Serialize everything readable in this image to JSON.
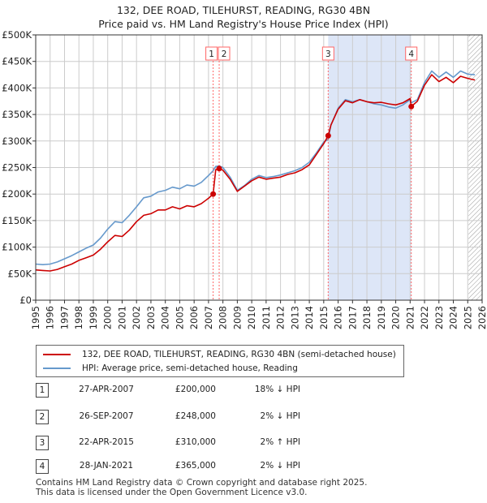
{
  "chart_data": {
    "type": "line",
    "title": "132, DEE ROAD, TILEHURST, READING, RG30 4BN",
    "subtitle": "Price paid vs. HM Land Registry's House Price Index (HPI)",
    "xlim": [
      1995,
      2026
    ],
    "ylim": [
      0,
      500000
    ],
    "x_ticks": [
      "1995",
      "1996",
      "1997",
      "1998",
      "1999",
      "2000",
      "2001",
      "2002",
      "2003",
      "2004",
      "2005",
      "2006",
      "2007",
      "2008",
      "2009",
      "2010",
      "2011",
      "2012",
      "2013",
      "2014",
      "2015",
      "2016",
      "2017",
      "2018",
      "2019",
      "2020",
      "2021",
      "2022",
      "2023",
      "2024",
      "2025",
      "2026"
    ],
    "y_ticks": [
      {
        "value": 0,
        "label": "£0"
      },
      {
        "value": 50000,
        "label": "£50K"
      },
      {
        "value": 100000,
        "label": "£100K"
      },
      {
        "value": 150000,
        "label": "£150K"
      },
      {
        "value": 200000,
        "label": "£200K"
      },
      {
        "value": 250000,
        "label": "£250K"
      },
      {
        "value": 300000,
        "label": "£300K"
      },
      {
        "value": 350000,
        "label": "£350K"
      },
      {
        "value": 400000,
        "label": "£400K"
      },
      {
        "value": 450000,
        "label": "£450K"
      },
      {
        "value": 500000,
        "label": "£500K"
      }
    ],
    "highlight_region": [
      2015.31,
      2021.08
    ],
    "series": [
      {
        "name": "132, DEE ROAD, TILEHURST, READING, RG30 4BN (semi-detached house)",
        "color": "#cc0000",
        "x": [
          1995.0,
          1995.5,
          1996.0,
          1996.5,
          1997.0,
          1997.5,
          1998.0,
          1998.5,
          1999.0,
          1999.5,
          2000.0,
          2000.5,
          2001.0,
          2001.5,
          2002.0,
          2002.5,
          2003.0,
          2003.5,
          2004.0,
          2004.5,
          2005.0,
          2005.5,
          2006.0,
          2006.5,
          2007.0,
          2007.32,
          2007.5,
          2007.74,
          2008.0,
          2008.5,
          2009.0,
          2009.5,
          2010.0,
          2010.5,
          2011.0,
          2011.5,
          2012.0,
          2012.5,
          2013.0,
          2013.5,
          2014.0,
          2014.5,
          2015.0,
          2015.31,
          2015.5,
          2016.0,
          2016.5,
          2017.0,
          2017.5,
          2018.0,
          2018.5,
          2019.0,
          2019.5,
          2020.0,
          2020.5,
          2021.0,
          2021.08,
          2021.5,
          2022.0,
          2022.5,
          2023.0,
          2023.5,
          2024.0,
          2024.5,
          2025.0,
          2025.5
        ],
        "values": [
          57000,
          56000,
          55000,
          58000,
          63000,
          68000,
          75000,
          80000,
          85000,
          96000,
          110000,
          122000,
          120000,
          132000,
          148000,
          160000,
          163000,
          170000,
          170000,
          176000,
          172000,
          178000,
          176000,
          182000,
          192000,
          200000,
          246000,
          248000,
          245000,
          228000,
          205000,
          215000,
          225000,
          232000,
          228000,
          230000,
          232000,
          237000,
          240000,
          246000,
          255000,
          275000,
          295000,
          310000,
          330000,
          360000,
          376000,
          372000,
          378000,
          374000,
          372000,
          373000,
          370000,
          368000,
          372000,
          380000,
          365000,
          375000,
          405000,
          425000,
          412000,
          420000,
          410000,
          422000,
          418000,
          415000
        ]
      },
      {
        "name": "HPI: Average price, semi-detached house, Reading",
        "color": "#6699cc",
        "x": [
          1995.0,
          1995.5,
          1996.0,
          1996.5,
          1997.0,
          1997.5,
          1998.0,
          1998.5,
          1999.0,
          1999.5,
          2000.0,
          2000.5,
          2001.0,
          2001.5,
          2002.0,
          2002.5,
          2003.0,
          2003.5,
          2004.0,
          2004.5,
          2005.0,
          2005.5,
          2006.0,
          2006.5,
          2007.0,
          2007.32,
          2007.5,
          2007.74,
          2008.0,
          2008.5,
          2009.0,
          2009.5,
          2010.0,
          2010.5,
          2011.0,
          2011.5,
          2012.0,
          2012.5,
          2013.0,
          2013.5,
          2014.0,
          2014.5,
          2015.0,
          2015.31,
          2015.5,
          2016.0,
          2016.5,
          2017.0,
          2017.5,
          2018.0,
          2018.5,
          2019.0,
          2019.5,
          2020.0,
          2020.5,
          2021.0,
          2021.08,
          2021.5,
          2022.0,
          2022.5,
          2023.0,
          2023.5,
          2024.0,
          2024.5,
          2025.0,
          2025.5
        ],
        "values": [
          68000,
          67000,
          68000,
          72000,
          78000,
          84000,
          91000,
          98000,
          104000,
          117000,
          134000,
          148000,
          146000,
          160000,
          176000,
          193000,
          196000,
          204000,
          207000,
          213000,
          210000,
          217000,
          215000,
          222000,
          235000,
          244000,
          252000,
          253000,
          250000,
          232000,
          207000,
          216000,
          228000,
          235000,
          231000,
          233000,
          236000,
          240000,
          244000,
          250000,
          260000,
          278000,
          298000,
          303000,
          330000,
          362000,
          378000,
          374000,
          378000,
          374000,
          370000,
          368000,
          364000,
          362000,
          368000,
          378000,
          372000,
          378000,
          410000,
          432000,
          420000,
          430000,
          420000,
          432000,
          426000,
          425000
        ]
      }
    ],
    "transactions": [
      {
        "label": "1",
        "x": 2007.32,
        "price": 200000
      },
      {
        "label": "2",
        "x": 2007.74,
        "price": 248000
      },
      {
        "label": "3",
        "x": 2015.31,
        "price": 310000
      },
      {
        "label": "4",
        "x": 2021.08,
        "price": 365000
      }
    ]
  },
  "legend": {
    "property_label": "132, DEE ROAD, TILEHURST, READING, RG30 4BN (semi-detached house)",
    "hpi_label": "HPI: Average price, semi-detached house, Reading"
  },
  "table": [
    {
      "num": "1",
      "date": "27-APR-2007",
      "price": "£200,000",
      "hpi": "18% ↓ HPI"
    },
    {
      "num": "2",
      "date": "26-SEP-2007",
      "price": "£248,000",
      "hpi": "2% ↓ HPI"
    },
    {
      "num": "3",
      "date": "22-APR-2015",
      "price": "£310,000",
      "hpi": "2% ↑ HPI"
    },
    {
      "num": "4",
      "date": "28-JAN-2021",
      "price": "£365,000",
      "hpi": "2% ↓ HPI"
    }
  ],
  "footer": {
    "line1": "Contains HM Land Registry data © Crown copyright and database right 2025.",
    "line2": "This data is licensed under the Open Government Licence v3.0."
  },
  "colors": {
    "property": "#cc0000",
    "hpi": "#6699cc",
    "highlight": "#dde6f7",
    "grid": "#cccccc",
    "marker_line": "#ff6666"
  }
}
